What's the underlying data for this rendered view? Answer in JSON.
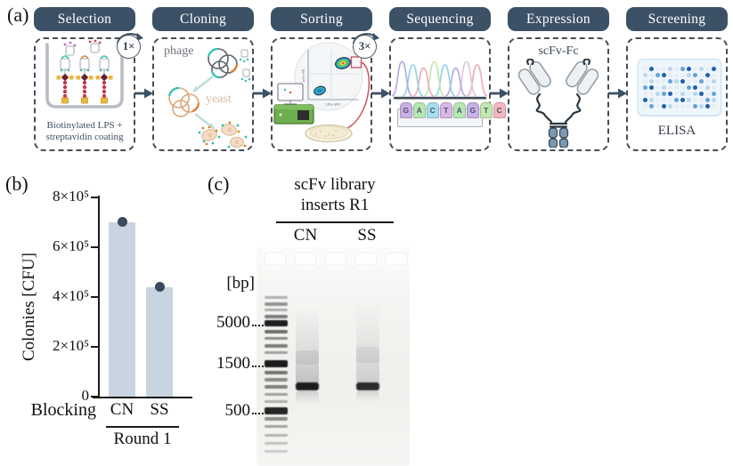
{
  "figure": {
    "a_label": "(a)",
    "b_label": "(b)",
    "c_label": "(c)"
  },
  "colors": {
    "header_bg": "#3c5166",
    "arrow": "#3c5166",
    "dashed_border": "#474d55"
  },
  "pipeline": {
    "selection": {
      "label": "Selection",
      "badge": "1×",
      "caption_line1": "Biotinylated LPS +",
      "caption_line2": "streptavidin coating"
    },
    "cloning": {
      "label": "Cloning",
      "phage_label": "phage",
      "yeast_label": "yeast"
    },
    "sorting": {
      "label": "Sorting",
      "badge": "3×",
      "y_axis": "scFv-PE",
      "x_axis": "LPS-APC"
    },
    "sequencing": {
      "label": "Sequencing",
      "letters": [
        "G",
        "A",
        "C",
        "T",
        "A",
        "G",
        "T",
        "C"
      ],
      "letter_colors": [
        "#c9b0e6",
        "#b7e7b2",
        "#a6def0",
        "#d8b8e8",
        "#b7e7b2",
        "#c9b0e6",
        "#c3e8ae",
        "#f6b6c4"
      ],
      "peak_colors": [
        "#b9a8e4",
        "#8fd6ea",
        "#f4a9ba",
        "#c8e6b0",
        "#8fd6ea",
        "#b9a8e4",
        "#dcc6de",
        "#f4a9ba"
      ]
    },
    "expression": {
      "label": "Expression",
      "construct_label": "scFv-Fc"
    },
    "screening": {
      "label": "Screening",
      "assay_label": "ELISA",
      "well_colors": [
        "#e9eef3",
        "#b9d6f0",
        "#66a1da",
        "#1e5fae"
      ],
      "well_pattern": [
        "030010230103",
        "102300012030",
        "010021300201",
        "230100023010",
        "001230101302",
        "310002310021",
        "020310002130"
      ]
    }
  },
  "chart_data": {
    "type": "bar",
    "title": "",
    "categories": [
      "CN",
      "SS"
    ],
    "values": [
      700000,
      440000
    ],
    "xlabel": "Blocking",
    "ylabel": "Colonies [CFU]",
    "ylim": [
      0,
      800000
    ],
    "yticks": [
      0,
      200000,
      400000,
      600000,
      800000
    ],
    "ytick_labels": [
      "0",
      "2×10⁵",
      "4×10⁵",
      "6×10⁵",
      "8×10⁵"
    ],
    "group_label": "Round 1",
    "bar_color": "#c9d4e1",
    "point_color": "#3a4a5e",
    "legend": null,
    "grid": false
  },
  "gel": {
    "title_line1": "scFv library",
    "title_line2": "inserts R1",
    "lane_labels": [
      "CN",
      "SS"
    ],
    "unit_label": "[bp]",
    "markers": [
      {
        "label": "5000"
      },
      {
        "label": "1500"
      },
      {
        "label": "500"
      }
    ],
    "ladder_bands": [
      [
        55,
        3,
        0.3
      ],
      [
        62,
        4,
        0.42
      ],
      [
        69,
        3,
        0.3
      ],
      [
        76,
        4,
        0.52
      ],
      [
        82,
        7,
        0.95
      ],
      [
        93,
        4,
        0.58
      ],
      [
        101,
        3,
        0.46
      ],
      [
        109,
        4,
        0.52
      ],
      [
        117,
        3,
        0.36
      ],
      [
        127,
        8,
        0.96
      ],
      [
        139,
        4,
        0.56
      ],
      [
        147,
        4,
        0.46
      ],
      [
        155,
        4,
        0.5
      ],
      [
        164,
        3,
        0.36
      ],
      [
        172,
        3,
        0.3
      ],
      [
        180,
        8,
        0.92
      ],
      [
        191,
        4,
        0.46
      ],
      [
        200,
        3,
        0.36
      ],
      [
        210,
        3,
        0.28
      ],
      [
        219,
        3,
        0.22
      ],
      [
        228,
        3,
        0.18
      ]
    ]
  }
}
